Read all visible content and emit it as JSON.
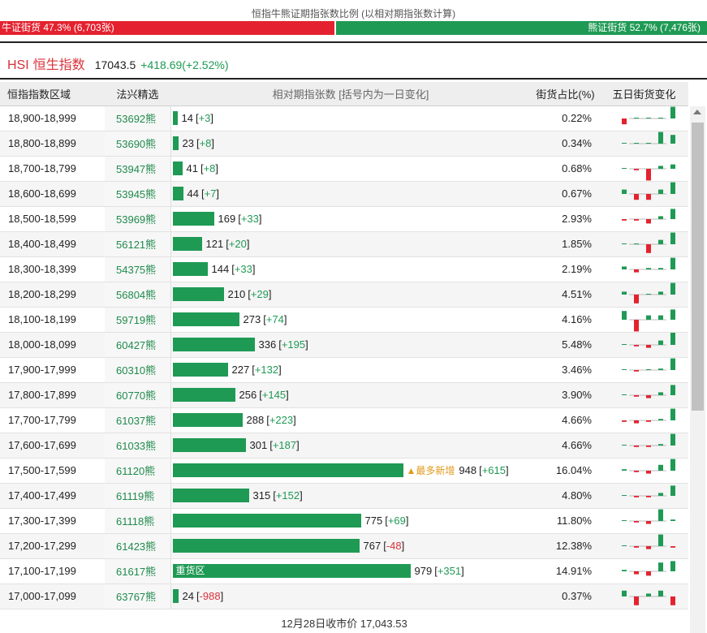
{
  "ratio": {
    "title": "恒指牛熊证期指张数比例 (以相对期指张数计算)",
    "bull_label": "牛证街货 47.3% (6,703张)",
    "bear_label": "熊证街货 52.7% (7,476张)",
    "bull_share": 0.473,
    "colors": {
      "bull": "#e4222f",
      "bear": "#1f9a55"
    }
  },
  "index": {
    "code": "HSI",
    "name": "恒生指数",
    "price": "17043.5",
    "change": "+418.69(+2.52%)"
  },
  "table": {
    "headers": {
      "range": "恒指指数区域",
      "code": "法兴精选",
      "bar": "相对期指张数 [括号内为一日变化]",
      "pct": "街货占比(%)",
      "spark": "五日街货变化"
    },
    "bar_scale_max": 979,
    "rows": [
      {
        "range": "18,900-18,999",
        "code": "53692熊",
        "count": "14",
        "delta": "+3",
        "sign": "pos",
        "value": 14,
        "pct": "0.22%",
        "spark": [
          -2,
          0,
          0,
          0,
          4
        ],
        "note": "",
        "label": ""
      },
      {
        "range": "18,800-18,899",
        "code": "53690熊",
        "count": "23",
        "delta": "+8",
        "sign": "pos",
        "value": 23,
        "pct": "0.34%",
        "spark": [
          0,
          0,
          0,
          4,
          3
        ],
        "note": "",
        "label": ""
      },
      {
        "range": "18,700-18,799",
        "code": "53947熊",
        "count": "41",
        "delta": "+8",
        "sign": "pos",
        "value": 41,
        "pct": "0.68%",
        "spark": [
          0,
          -0.5,
          -4,
          1,
          1.5
        ],
        "note": "",
        "label": ""
      },
      {
        "range": "18,600-18,699",
        "code": "53945熊",
        "count": "44",
        "delta": "+7",
        "sign": "pos",
        "value": 44,
        "pct": "0.67%",
        "spark": [
          1.5,
          -2,
          -2,
          1.5,
          4
        ],
        "note": "",
        "label": ""
      },
      {
        "range": "18,500-18,599",
        "code": "53969熊",
        "count": "169",
        "delta": "+33",
        "sign": "pos",
        "value": 169,
        "pct": "2.93%",
        "spark": [
          -0.5,
          -0.5,
          -1.5,
          1,
          3.5
        ],
        "note": "",
        "label": ""
      },
      {
        "range": "18,400-18,499",
        "code": "56121熊",
        "count": "121",
        "delta": "+20",
        "sign": "pos",
        "value": 121,
        "pct": "1.85%",
        "spark": [
          0,
          0,
          -3,
          1.5,
          4
        ],
        "note": "",
        "label": ""
      },
      {
        "range": "18,300-18,399",
        "code": "54375熊",
        "count": "144",
        "delta": "+33",
        "sign": "pos",
        "value": 144,
        "pct": "2.19%",
        "spark": [
          1,
          -1,
          0.5,
          0.5,
          4
        ],
        "note": "",
        "label": ""
      },
      {
        "range": "18,200-18,299",
        "code": "56804熊",
        "count": "210",
        "delta": "+29",
        "sign": "pos",
        "value": 210,
        "pct": "4.51%",
        "spark": [
          1,
          -3,
          0,
          1,
          4
        ],
        "note": "",
        "label": ""
      },
      {
        "range": "18,100-18,199",
        "code": "59719熊",
        "count": "273",
        "delta": "+74",
        "sign": "pos",
        "value": 273,
        "pct": "4.16%",
        "spark": [
          3,
          -4,
          1.5,
          1.5,
          3.5
        ],
        "note": "",
        "label": ""
      },
      {
        "range": "18,000-18,099",
        "code": "60427熊",
        "count": "336",
        "delta": "+195",
        "sign": "pos",
        "value": 336,
        "pct": "5.48%",
        "spark": [
          0,
          -0.5,
          -1,
          1.5,
          4.5
        ],
        "note": "",
        "label": ""
      },
      {
        "range": "17,900-17,999",
        "code": "60310熊",
        "count": "227",
        "delta": "+132",
        "sign": "pos",
        "value": 227,
        "pct": "3.46%",
        "spark": [
          0,
          -0.5,
          0,
          0.5,
          4
        ],
        "note": "",
        "label": ""
      },
      {
        "range": "17,800-17,899",
        "code": "60770熊",
        "count": "256",
        "delta": "+145",
        "sign": "pos",
        "value": 256,
        "pct": "3.90%",
        "spark": [
          0,
          -0.5,
          -1,
          1,
          3.5
        ],
        "note": "",
        "label": ""
      },
      {
        "range": "17,700-17,799",
        "code": "61037熊",
        "count": "288",
        "delta": "+223",
        "sign": "pos",
        "value": 288,
        "pct": "4.66%",
        "spark": [
          -0.5,
          -1,
          -0.5,
          0.5,
          4
        ],
        "note": "",
        "label": ""
      },
      {
        "range": "17,600-17,699",
        "code": "61033熊",
        "count": "301",
        "delta": "+187",
        "sign": "pos",
        "value": 301,
        "pct": "4.66%",
        "spark": [
          0,
          -0.5,
          -0.5,
          0.5,
          4
        ],
        "note": "",
        "label": ""
      },
      {
        "range": "17,500-17,599",
        "code": "61120熊",
        "count": "948",
        "delta": "+615",
        "sign": "pos",
        "value": 948,
        "pct": "16.04%",
        "spark": [
          0.5,
          -0.5,
          -1,
          2,
          4
        ],
        "note": "▲最多新增",
        "label": ""
      },
      {
        "range": "17,400-17,499",
        "code": "61119熊",
        "count": "315",
        "delta": "+152",
        "sign": "pos",
        "value": 315,
        "pct": "4.80%",
        "spark": [
          0,
          -0.5,
          -0.5,
          1,
          3.5
        ],
        "note": "",
        "label": ""
      },
      {
        "range": "17,300-17,399",
        "code": "61118熊",
        "count": "775",
        "delta": "+69",
        "sign": "pos",
        "value": 775,
        "pct": "11.80%",
        "spark": [
          0,
          -0.5,
          -1,
          4,
          0.5
        ],
        "note": "",
        "label": ""
      },
      {
        "range": "17,200-17,299",
        "code": "61423熊",
        "count": "767",
        "delta": "-48",
        "sign": "neg",
        "value": 767,
        "pct": "12.38%",
        "spark": [
          0,
          -0.5,
          -1,
          4,
          -0.5
        ],
        "note": "",
        "label": ""
      },
      {
        "range": "17,100-17,199",
        "code": "61617熊",
        "count": "979",
        "delta": "+351",
        "sign": "pos",
        "value": 979,
        "pct": "14.91%",
        "spark": [
          0.5,
          -1,
          -1.5,
          3,
          3.5
        ],
        "note": "",
        "label": "重货区"
      },
      {
        "range": "17,000-17,099",
        "code": "63767熊",
        "count": "24",
        "delta": "-988",
        "sign": "neg",
        "value": 24,
        "pct": "0.37%",
        "spark": [
          2,
          -3,
          1,
          2,
          -3
        ]
      }
    ],
    "spark_colors": {
      "up": "#1f9a55",
      "down": "#e4222f"
    }
  },
  "footer": "12月28日收市价 17,043.53"
}
